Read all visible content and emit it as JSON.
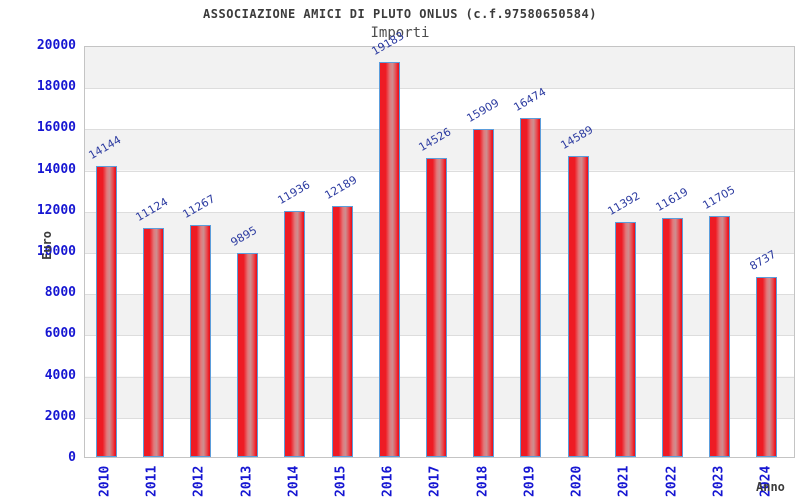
{
  "chart_data": {
    "type": "bar",
    "title": "ASSOCIAZIONE AMICI DI PLUTO ONLUS (c.f.97580650584)",
    "subtitle": "Importi",
    "xlabel": "Anno",
    "ylabel": "Euro",
    "categories": [
      "2010",
      "2011",
      "2012",
      "2013",
      "2014",
      "2015",
      "2016",
      "2017",
      "2018",
      "2019",
      "2020",
      "2021",
      "2022",
      "2023",
      "2024"
    ],
    "values": [
      14144,
      11124,
      11267,
      9895,
      11936,
      12189,
      19183,
      14526,
      15909,
      16474,
      14589,
      11392,
      11619,
      11705,
      8737
    ],
    "ylim": [
      0,
      20000
    ],
    "yticks": [
      0,
      2000,
      4000,
      6000,
      8000,
      10000,
      12000,
      14000,
      16000,
      18000,
      20000
    ],
    "grid": "horizontal, alternating background bands",
    "legend": "none",
    "colors": {
      "bar_fill": "#ee1b24",
      "bar_fill_highlight": "#cd8f90",
      "bar_border": "#5b9ddb",
      "axis_tick_text": "#1616d2",
      "value_label_text": "#2b3aa0",
      "band_gray": "#f2f2f2",
      "band_white": "#ffffff",
      "gridline": "#dddddd",
      "title_text": "#3b3b3b",
      "subtitle_text": "#4d4d4d"
    }
  }
}
